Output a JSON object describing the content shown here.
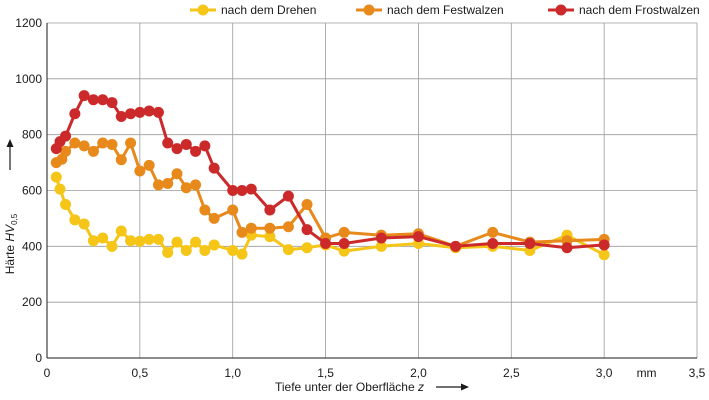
{
  "chart_data": {
    "type": "line",
    "xlabel": "Tiefe unter der Oberfläche",
    "xlabel_var": "z",
    "ylabel": "Härte",
    "ylabel_var": "HV",
    "ylabel_sub": "0,5",
    "x_unit": "mm",
    "xlim": [
      0,
      3.5
    ],
    "ylim": [
      0,
      1200
    ],
    "x_ticks": [
      0,
      0.5,
      1.0,
      1.5,
      2.0,
      2.5,
      3.0,
      3.5
    ],
    "x_tick_labels": [
      "0",
      "0,5",
      "1,0",
      "1,5",
      "2,0",
      "2,5",
      "3,0",
      "3,5"
    ],
    "y_ticks": [
      0,
      200,
      400,
      600,
      800,
      1000,
      1200
    ],
    "y_tick_labels": [
      "0",
      "200",
      "400",
      "600",
      "800",
      "1000",
      "1200"
    ],
    "grid": true,
    "legend_position": "top",
    "series": [
      {
        "name": "nach dem Drehen",
        "color": "#f5c518",
        "x": [
          0.05,
          0.07,
          0.1,
          0.15,
          0.2,
          0.25,
          0.3,
          0.35,
          0.4,
          0.45,
          0.5,
          0.55,
          0.6,
          0.65,
          0.7,
          0.75,
          0.8,
          0.85,
          0.9,
          1.0,
          1.05,
          1.1,
          1.2,
          1.3,
          1.4,
          1.5,
          1.6,
          1.8,
          2.0,
          2.2,
          2.4,
          2.6,
          2.8,
          3.0
        ],
        "y": [
          648,
          605,
          550,
          495,
          480,
          420,
          430,
          400,
          455,
          420,
          418,
          425,
          425,
          378,
          415,
          385,
          415,
          385,
          405,
          385,
          372,
          440,
          435,
          388,
          395,
          405,
          383,
          400,
          410,
          395,
          400,
          385,
          440,
          370
        ]
      },
      {
        "name": "nach dem Festwalzen",
        "color": "#e8891c",
        "x": [
          0.05,
          0.08,
          0.1,
          0.15,
          0.2,
          0.25,
          0.3,
          0.35,
          0.4,
          0.45,
          0.5,
          0.55,
          0.6,
          0.65,
          0.7,
          0.75,
          0.8,
          0.85,
          0.9,
          1.0,
          1.05,
          1.1,
          1.2,
          1.3,
          1.4,
          1.5,
          1.6,
          1.8,
          2.0,
          2.2,
          2.4,
          2.6,
          2.8,
          3.0
        ],
        "y": [
          700,
          712,
          740,
          770,
          760,
          740,
          770,
          765,
          710,
          770,
          670,
          690,
          620,
          625,
          660,
          610,
          620,
          530,
          500,
          530,
          450,
          465,
          465,
          470,
          550,
          430,
          450,
          440,
          445,
          400,
          450,
          415,
          420,
          425
        ]
      },
      {
        "name": "nach dem Frostwalzen",
        "color": "#cc2a2a",
        "x": [
          0.05,
          0.07,
          0.1,
          0.15,
          0.2,
          0.25,
          0.3,
          0.35,
          0.4,
          0.45,
          0.5,
          0.55,
          0.6,
          0.65,
          0.7,
          0.75,
          0.8,
          0.85,
          0.9,
          1.0,
          1.05,
          1.1,
          1.2,
          1.3,
          1.4,
          1.5,
          1.6,
          1.8,
          2.0,
          2.2,
          2.4,
          2.6,
          2.8,
          3.0
        ],
        "y": [
          750,
          775,
          795,
          875,
          940,
          925,
          925,
          915,
          865,
          875,
          880,
          885,
          880,
          770,
          750,
          765,
          740,
          760,
          680,
          600,
          600,
          605,
          530,
          580,
          460,
          410,
          410,
          430,
          435,
          400,
          410,
          410,
          395,
          405
        ]
      }
    ]
  }
}
